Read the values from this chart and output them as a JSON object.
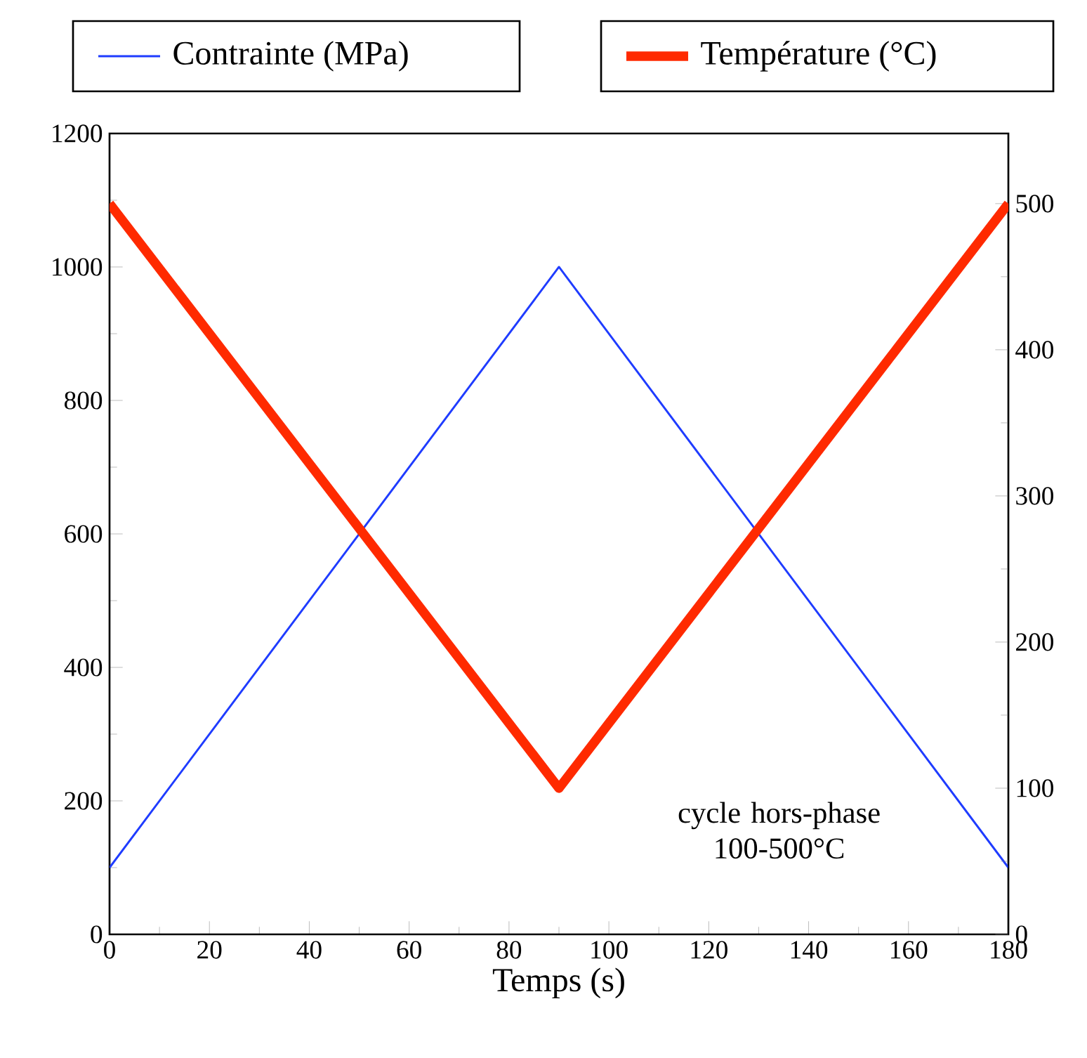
{
  "chart_data": {
    "type": "line",
    "xlabel": "Temps (s)",
    "x": [
      0,
      90,
      180
    ],
    "series": [
      {
        "name": "Contrainte (MPa)",
        "color": "#1f3cff",
        "values": [
          100,
          1000,
          100
        ]
      },
      {
        "name": "Température (°C)",
        "color": "#ff2a00",
        "values": [
          500,
          100,
          500
        ],
        "axis": "y2"
      }
    ],
    "xlim": [
      0,
      180
    ],
    "xticks": [
      0,
      20,
      40,
      60,
      80,
      100,
      120,
      140,
      160,
      180
    ],
    "ylim": [
      0,
      1200
    ],
    "yticks": [
      0,
      200,
      400,
      600,
      800,
      1000,
      1200
    ],
    "y2lim": [
      0,
      548
    ],
    "y2ticks": [
      0,
      100,
      200,
      300,
      400,
      500
    ],
    "legend": "top",
    "marker": "none",
    "line_style": "solid",
    "annotations": [
      "cycle hors-phase 100-500°C"
    ]
  }
}
